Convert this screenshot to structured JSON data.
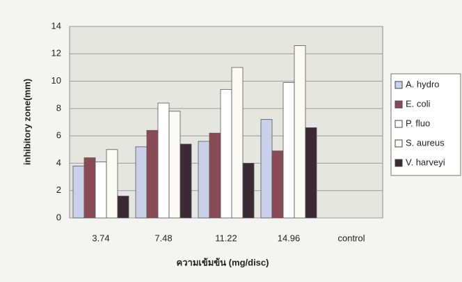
{
  "chart_data": {
    "type": "bar",
    "y_label": "inhibitory zone(mm)",
    "x_label": "ความเข้มข้น (mg/disc)",
    "categories": [
      "3.74",
      "7.48",
      "11.22",
      "14.96",
      "control"
    ],
    "series": [
      {
        "name": "A. hydro",
        "color": "#c9d1ea",
        "values": [
          3.8,
          5.2,
          5.6,
          7.2,
          null
        ]
      },
      {
        "name": "E. coli",
        "color": "#8a4b57",
        "values": [
          4.4,
          6.4,
          6.2,
          4.9,
          null
        ]
      },
      {
        "name": "P. fluo",
        "color": "#ffffff",
        "values": [
          4.1,
          8.4,
          9.4,
          9.9,
          null
        ]
      },
      {
        "name": "S. aureus",
        "color": "#fbfbf4",
        "values": [
          5.0,
          7.8,
          11.0,
          12.6,
          null
        ]
      },
      {
        "name": "V. harveyi",
        "color": "#3b2a33",
        "values": [
          1.6,
          5.4,
          4.0,
          6.6,
          null
        ]
      }
    ],
    "ylim": [
      0,
      14
    ],
    "yticks": [
      0,
      2,
      4,
      6,
      8,
      10,
      12,
      14
    ],
    "grid": true,
    "legend": "right"
  }
}
